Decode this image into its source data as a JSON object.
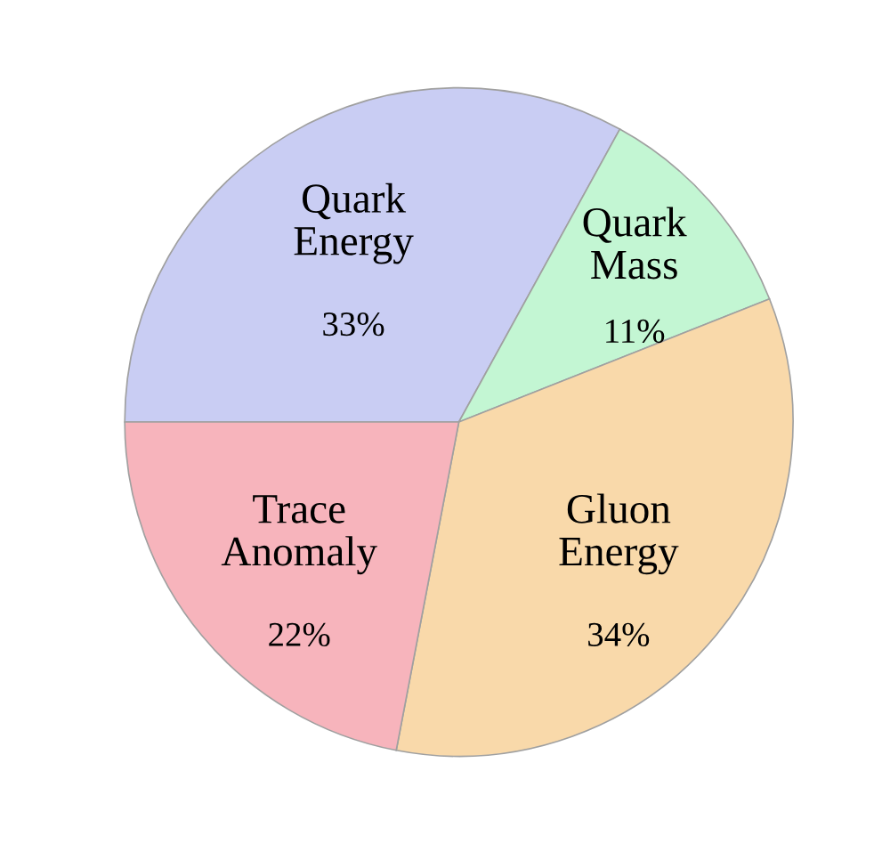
{
  "chart_data": {
    "type": "pie",
    "categories": [
      "Quark\nEnergy",
      "Quark\nMass",
      "Gluon\nEnergy",
      "Trace\nAnomaly"
    ],
    "values": [
      33,
      11,
      34,
      22
    ],
    "value_labels": [
      "33%",
      "11%",
      "34%",
      "22%"
    ],
    "colors": [
      "#c9cdf3",
      "#c3f6d3",
      "#f9d9aa",
      "#f7b4bc"
    ]
  }
}
